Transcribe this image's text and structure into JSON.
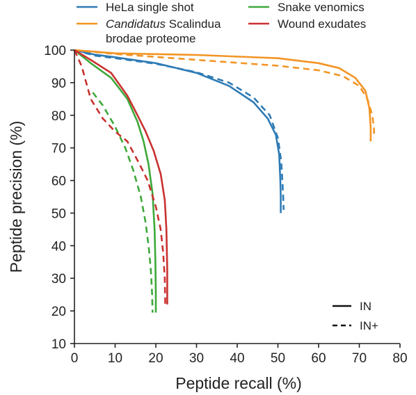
{
  "chart_data": {
    "type": "line",
    "title": "",
    "xlabel": "Peptide recall (%)",
    "ylabel": "Peptide precision (%)",
    "xlim": [
      0,
      80
    ],
    "ylim": [
      10,
      100
    ],
    "xticks": [
      0,
      10,
      20,
      30,
      40,
      50,
      60,
      70,
      80
    ],
    "yticks": [
      10,
      20,
      30,
      40,
      50,
      60,
      70,
      80,
      90,
      100
    ],
    "grid": false,
    "legend": {
      "placement": "top",
      "datasets": [
        {
          "label_italic": "",
          "label": "HeLa single shot",
          "color": "#2e7bb6"
        },
        {
          "label_italic": "Candidatus",
          "label": " Scalindua",
          "label_line2": "brodae proteome",
          "color": "#f39424"
        },
        {
          "label_italic": "",
          "label": "Snake venomics",
          "color": "#3da83a"
        },
        {
          "label_italic": "",
          "label": "Wound exudates",
          "color": "#c9312f"
        }
      ],
      "styles": [
        {
          "label": "IN",
          "line": "solid"
        },
        {
          "label": "IN+",
          "line": "dashed"
        }
      ]
    },
    "series": [
      {
        "dataset": "HeLa single shot",
        "method": "IN",
        "color": "#2e7bb6",
        "dash": false,
        "x": [
          0,
          5,
          10,
          20,
          30,
          38,
          44,
          47.5,
          49.5,
          50.3,
          50.6,
          50.7,
          50.7,
          50.7
        ],
        "y": [
          100,
          98.6,
          97.8,
          96,
          93,
          89,
          84,
          79,
          74,
          68,
          60,
          55,
          52,
          50
        ]
      },
      {
        "dataset": "HeLa single shot",
        "method": "IN+",
        "color": "#2e7bb6",
        "dash": true,
        "x": [
          0,
          5,
          10,
          20,
          30,
          38,
          44,
          48,
          50,
          50.8,
          51.1,
          51.3,
          51.4
        ],
        "y": [
          100,
          98.3,
          97.5,
          95.8,
          93.2,
          90,
          85.5,
          80,
          73,
          66,
          60,
          55,
          51
        ]
      },
      {
        "dataset": "Candidatus Scalindua brodae proteome",
        "method": "IN",
        "color": "#f39424",
        "dash": false,
        "x": [
          0,
          10,
          30,
          50,
          60,
          65,
          69,
          71.5,
          72.5,
          72.8,
          72.8
        ],
        "y": [
          100,
          99,
          98.5,
          97.5,
          96,
          94.5,
          91.5,
          87.5,
          82,
          76,
          72
        ]
      },
      {
        "dataset": "Candidatus Scalindua brodae proteome",
        "method": "IN+",
        "color": "#f39424",
        "dash": true,
        "x": [
          0,
          10,
          30,
          50,
          60,
          66,
          70,
          72,
          73.2,
          73.6,
          73.6
        ],
        "y": [
          100,
          98.8,
          97,
          95.2,
          93.8,
          92,
          89,
          85,
          80,
          76,
          73
        ]
      },
      {
        "dataset": "Snake venomics",
        "method": "IN",
        "color": "#3da83a",
        "dash": false,
        "x": [
          0,
          4,
          9,
          13,
          15.5,
          17,
          18.2,
          19.2,
          19.7,
          19.9,
          20,
          20
        ],
        "y": [
          100,
          96,
          91.5,
          85,
          78,
          72,
          65,
          56,
          45,
          35,
          25,
          19.5
        ]
      },
      {
        "dataset": "Snake venomics",
        "method": "IN+",
        "color": "#3da83a",
        "dash": true,
        "x": [
          4.5,
          7,
          10,
          12.5,
          14.5,
          16.3,
          17.5,
          18.3,
          18.8,
          19.1,
          19.2
        ],
        "y": [
          87,
          83,
          76.5,
          70,
          63,
          55,
          47,
          39,
          32,
          25,
          19.5
        ]
      },
      {
        "dataset": "Wound exudates",
        "method": "IN",
        "color": "#c9312f",
        "dash": false,
        "x": [
          0,
          4,
          9,
          13,
          15.5,
          17.5,
          19.5,
          21.2,
          22.2,
          22.6,
          22.8,
          22.8
        ],
        "y": [
          100,
          97,
          93,
          86,
          80,
          75,
          69,
          62,
          54,
          45,
          33,
          22
        ]
      },
      {
        "dataset": "Wound exudates",
        "method": "IN+",
        "color": "#c9312f",
        "dash": true,
        "x": [
          0,
          1.8,
          4,
          7,
          10,
          13,
          16,
          18,
          20,
          21.2,
          21.8,
          22.2,
          22.3
        ],
        "y": [
          100,
          95,
          85,
          79,
          75,
          72,
          65,
          60,
          52,
          45,
          38,
          30,
          22
        ]
      }
    ]
  }
}
